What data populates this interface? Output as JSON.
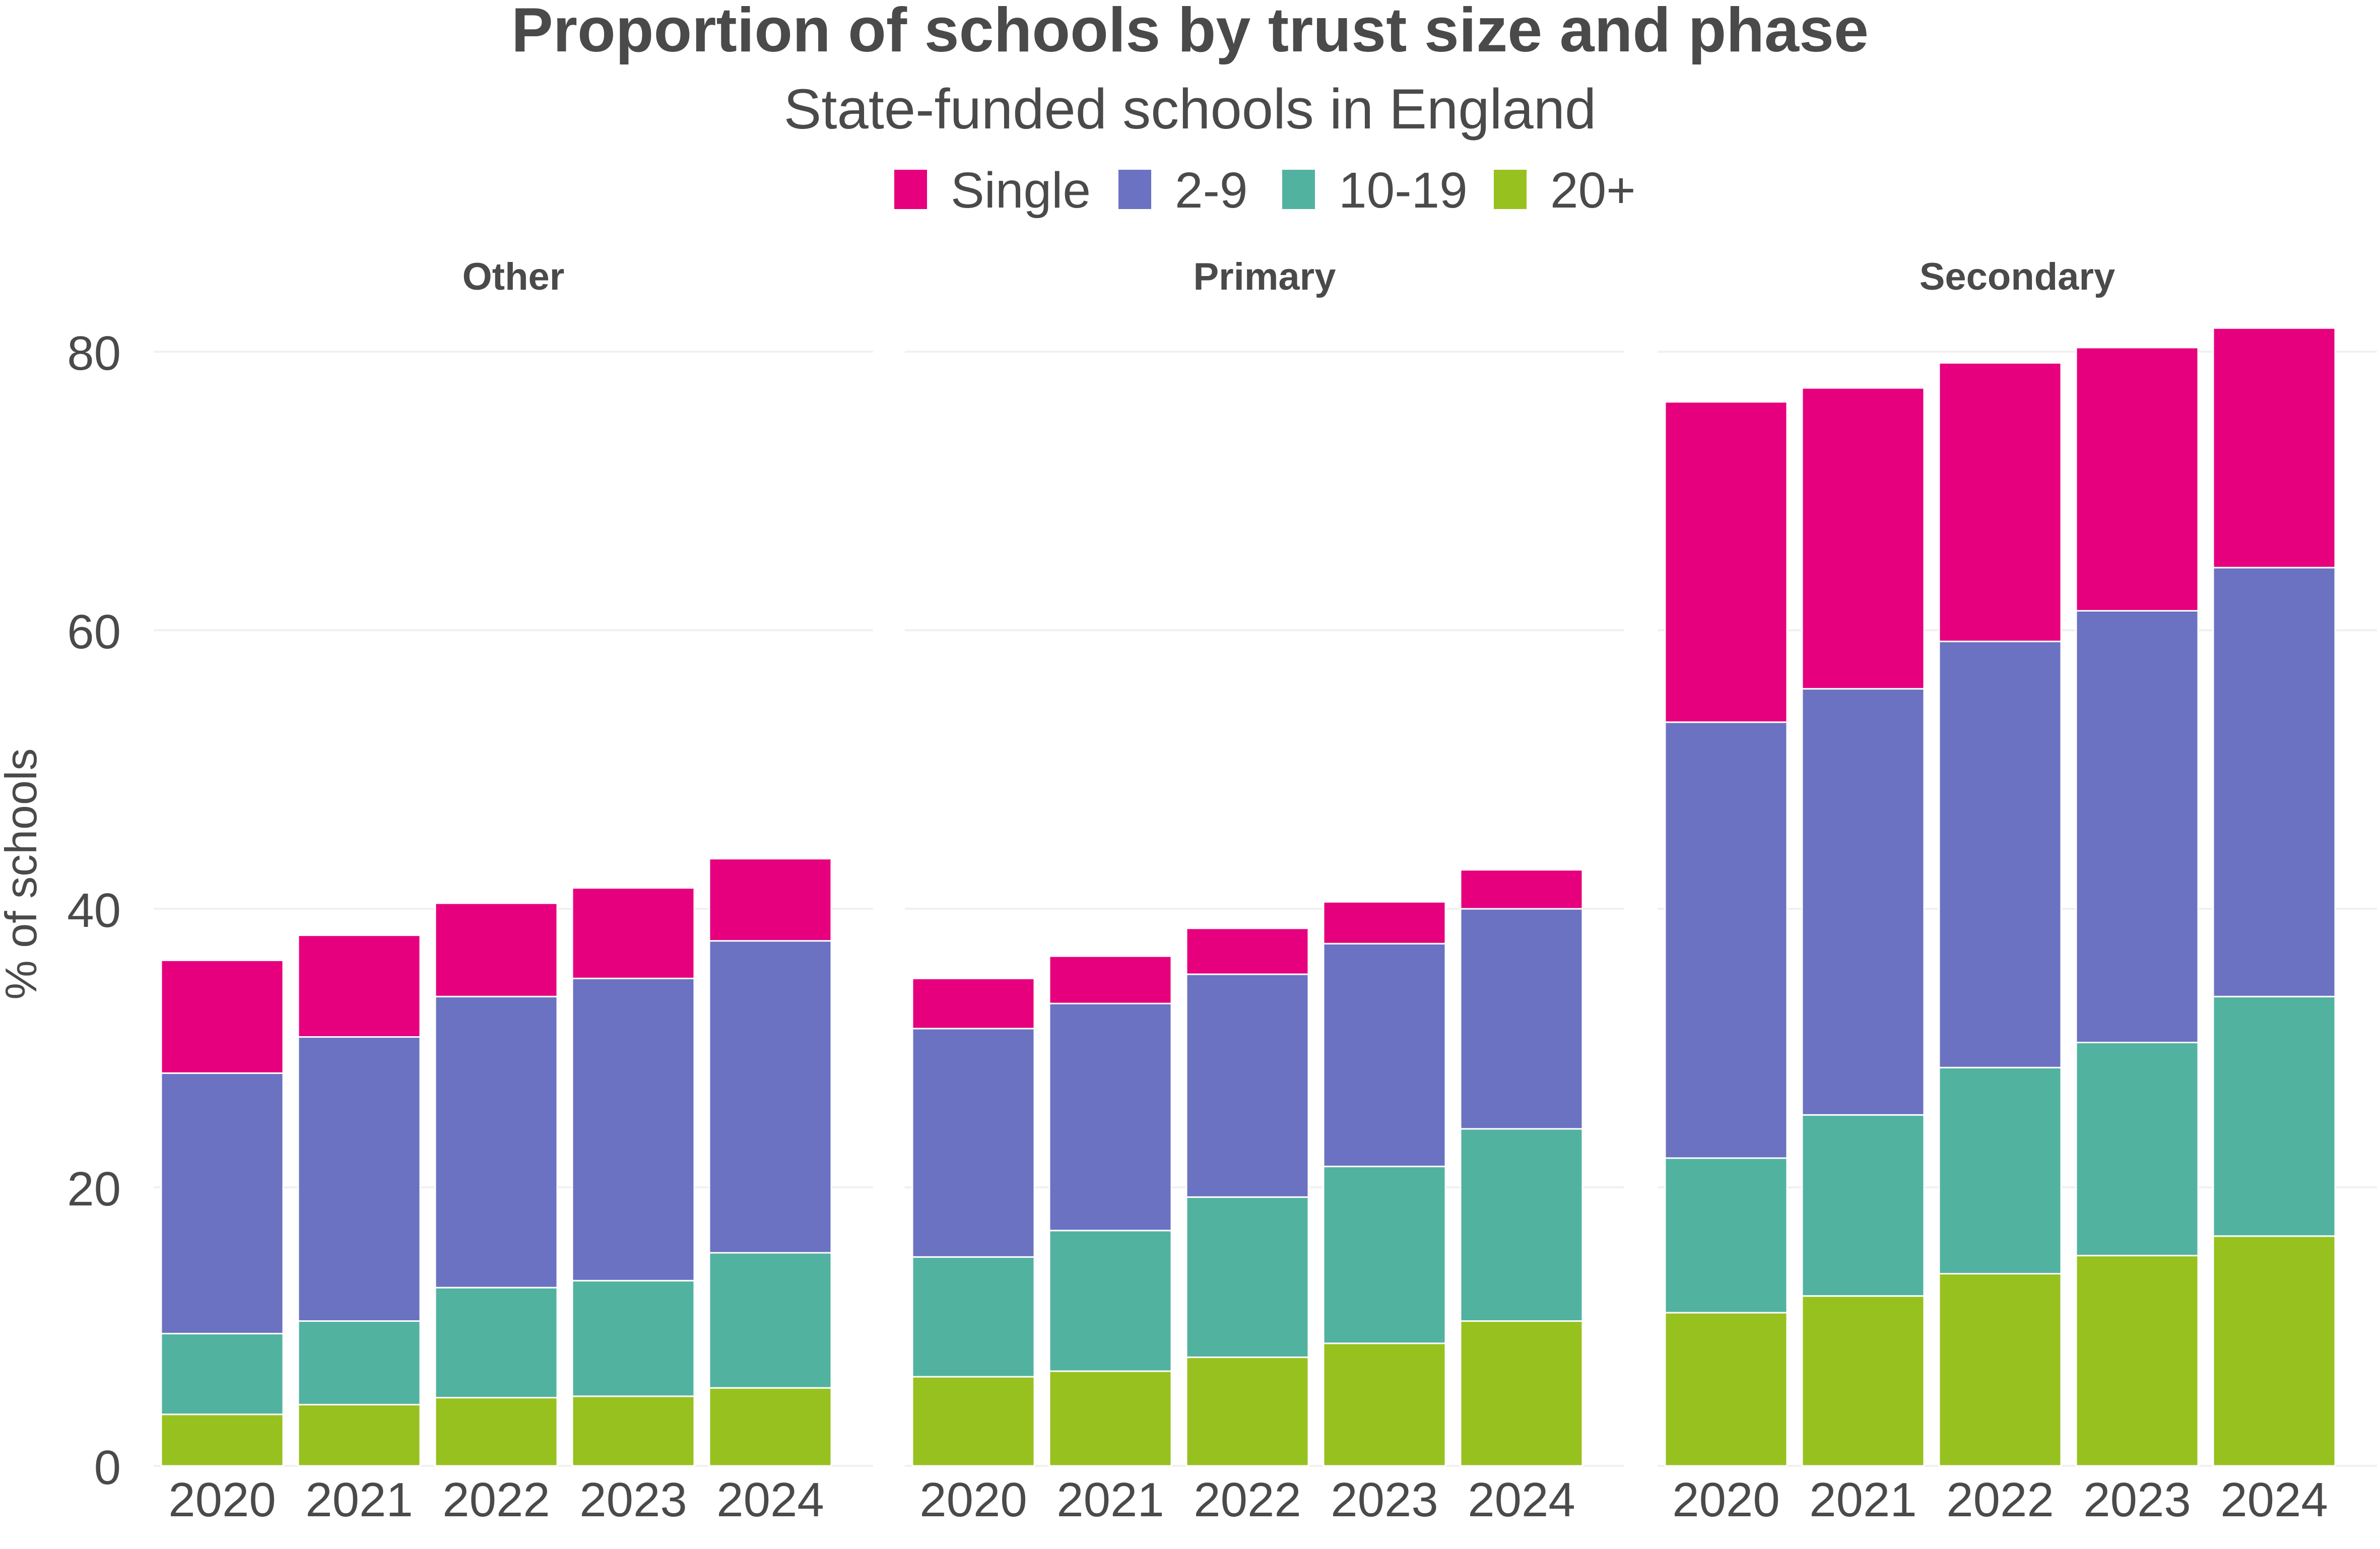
{
  "chart_data": {
    "type": "bar",
    "stacked": true,
    "title": "Proportion of schools by trust size and phase",
    "subtitle": "State-funded schools in England",
    "ylabel": "% of schools",
    "xlabel": "",
    "ylim": [
      0,
      85
    ],
    "yticks": [
      0,
      20,
      40,
      60,
      80
    ],
    "grid": true,
    "legend_position": "top",
    "categories": [
      "2020",
      "2021",
      "2022",
      "2023",
      "2024"
    ],
    "series": [
      {
        "name": "Single",
        "color": "#e6007e"
      },
      {
        "name": "2-9",
        "color": "#6b72c1"
      },
      {
        "name": "10-19",
        "color": "#52b2a0"
      },
      {
        "name": "20+",
        "color": "#97c11f"
      }
    ],
    "panels": [
      {
        "title": "Other",
        "stack_values": {
          "20+": [
            3.7,
            4.4,
            4.9,
            5.0,
            5.6
          ],
          "10-19": [
            5.8,
            6.0,
            7.9,
            8.3,
            9.7
          ],
          "2-9": [
            18.7,
            20.4,
            20.9,
            21.7,
            22.4
          ],
          "Single": [
            8.1,
            7.3,
            6.7,
            6.5,
            5.9
          ]
        }
      },
      {
        "title": "Primary",
        "stack_values": {
          "20+": [
            6.4,
            6.8,
            7.8,
            8.8,
            10.4
          ],
          "10-19": [
            8.6,
            10.1,
            11.5,
            12.7,
            13.8
          ],
          "2-9": [
            16.4,
            16.3,
            16.0,
            16.0,
            15.8
          ],
          "Single": [
            3.6,
            3.4,
            3.3,
            3.0,
            2.8
          ]
        }
      },
      {
        "title": "Secondary",
        "stack_values": {
          "20+": [
            11.0,
            12.2,
            13.8,
            15.1,
            16.5
          ],
          "10-19": [
            11.1,
            13.0,
            14.8,
            15.3,
            17.2
          ],
          "2-9": [
            31.3,
            30.6,
            30.6,
            31.0,
            30.8
          ],
          "Single": [
            23.0,
            21.6,
            20.0,
            18.9,
            17.2
          ]
        }
      }
    ]
  }
}
